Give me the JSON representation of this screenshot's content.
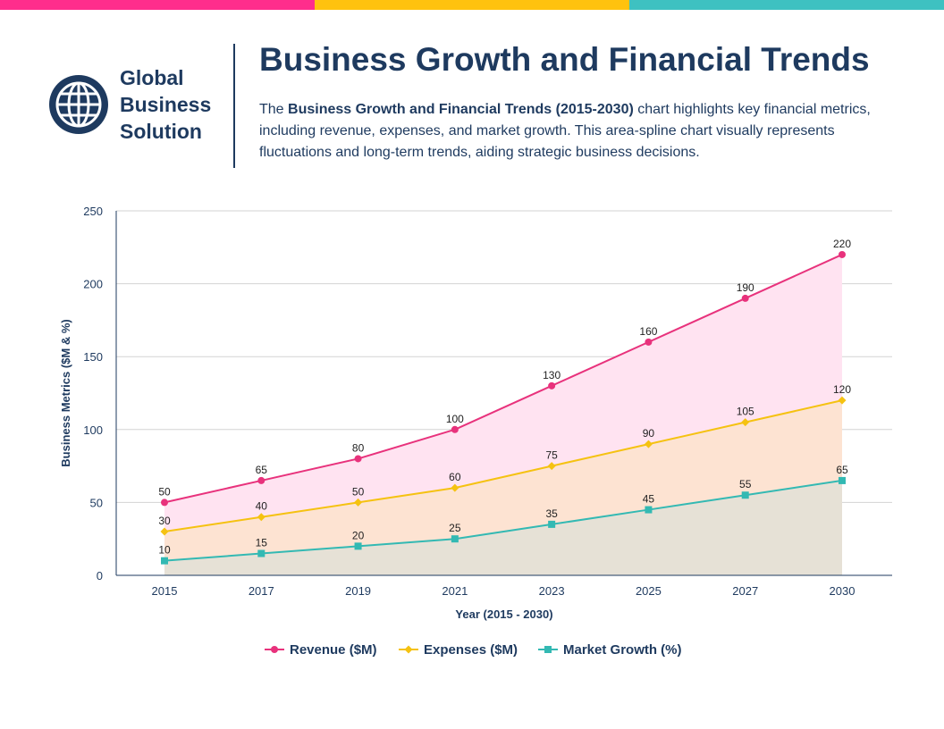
{
  "colors": {
    "bar_pink": "#ff2d8c",
    "bar_yellow": "#ffc20e",
    "bar_teal": "#3ec1c1",
    "navy": "#1e3a5f"
  },
  "brand": {
    "icon": "globe-icon",
    "line1": "Global",
    "line2": "Business",
    "line3": "Solution"
  },
  "header": {
    "title": "Business Growth and Financial Trends",
    "intro_prefix": "The ",
    "intro_bold": "Business Growth and Financial Trends (2015-2030)",
    "intro_rest": " chart highlights key financial metrics, including revenue, expenses, and market growth. This area-spline chart visually represents fluctuations and long-term trends, aiding strategic business decisions."
  },
  "chart_data": {
    "type": "area",
    "categories": [
      "2015",
      "2017",
      "2019",
      "2021",
      "2023",
      "2025",
      "2027",
      "2030"
    ],
    "series": [
      {
        "name": "Revenue ($M)",
        "values": [
          50,
          65,
          80,
          100,
          130,
          160,
          190,
          220
        ],
        "color": "#e8327c",
        "fill": "#ffe3f1",
        "marker": "circle"
      },
      {
        "name": "Expenses ($M)",
        "values": [
          30,
          40,
          50,
          60,
          75,
          90,
          105,
          120
        ],
        "color": "#f5c211",
        "fill": "#fde3d2",
        "marker": "diamond"
      },
      {
        "name": "Market Growth (%)",
        "values": [
          10,
          15,
          20,
          25,
          35,
          45,
          55,
          65
        ],
        "color": "#33b9b3",
        "fill": "#e6e1d6",
        "marker": "square"
      }
    ],
    "yticks": [
      "0",
      "50",
      "100",
      "150",
      "200",
      "250"
    ],
    "ylim": [
      0,
      250
    ],
    "xlabel": "Year (2015 - 2030)",
    "ylabel": "Business Metrics ($M & %)",
    "legend_position": "bottom-center",
    "grid": true
  }
}
